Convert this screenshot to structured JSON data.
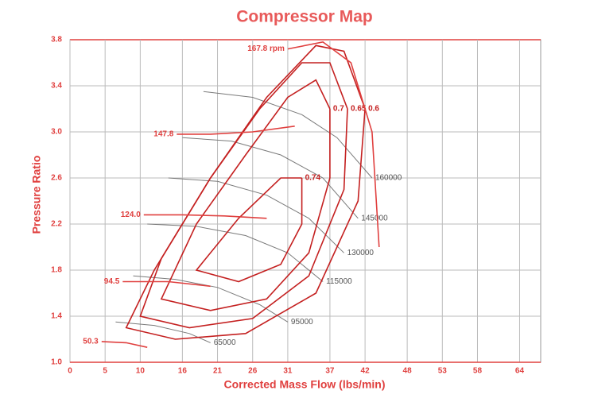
{
  "chart_data": {
    "type": "line",
    "title": "Compressor Map",
    "xlabel": "Corrected Mass Flow (lbs/min)",
    "ylabel": "Pressure Ratio",
    "xlim": [
      0,
      67
    ],
    "xticks": [
      0,
      5,
      10,
      16,
      21,
      26,
      31,
      37,
      42,
      48,
      53,
      58,
      64
    ],
    "ylim": [
      1.0,
      3.8
    ],
    "yticks": [
      {
        "value": 1.0,
        "label": "1.0"
      },
      1.4,
      1.8,
      2.2,
      2.6,
      {
        "value": 3.0,
        "label": "3.0"
      },
      3.4,
      3.8
    ],
    "grid": true,
    "series": [
      {
        "name": "65000",
        "color": "#7a7a7a",
        "x": [
          20,
          17,
          12,
          6.5
        ],
        "y": [
          1.17,
          1.25,
          1.32,
          1.35
        ]
      },
      {
        "name": "95000",
        "color": "#7a7a7a",
        "x": [
          31,
          27,
          21,
          15,
          9
        ],
        "y": [
          1.35,
          1.5,
          1.65,
          1.72,
          1.75
        ]
      },
      {
        "name": "115000",
        "color": "#7a7a7a",
        "x": [
          36,
          31,
          25,
          18,
          11
        ],
        "y": [
          1.7,
          1.95,
          2.1,
          2.18,
          2.2
        ]
      },
      {
        "name": "130000",
        "color": "#7a7a7a",
        "x": [
          39,
          34,
          28,
          21,
          14
        ],
        "y": [
          1.95,
          2.25,
          2.45,
          2.57,
          2.6
        ]
      },
      {
        "name": "145000",
        "color": "#7a7a7a",
        "x": [
          41,
          36,
          30,
          23,
          16
        ],
        "y": [
          2.25,
          2.6,
          2.8,
          2.92,
          2.95
        ]
      },
      {
        "name": "160000",
        "color": "#7a7a7a",
        "x": [
          43,
          38,
          33,
          26,
          19
        ],
        "y": [
          2.6,
          2.95,
          3.15,
          3.3,
          3.35
        ]
      },
      {
        "name": "0.6",
        "color": "#c42020",
        "x": [
          42,
          41,
          35,
          25,
          15,
          8,
          12,
          20,
          28,
          35,
          39,
          42
        ],
        "y": [
          3.2,
          2.4,
          1.6,
          1.25,
          1.2,
          1.3,
          1.8,
          2.6,
          3.3,
          3.75,
          3.7,
          3.2
        ]
      },
      {
        "name": "0.65",
        "color": "#c42020",
        "x": [
          39.5,
          39,
          34,
          26,
          17,
          10,
          13,
          20,
          27,
          33,
          37,
          39.5
        ],
        "y": [
          3.2,
          2.5,
          1.75,
          1.38,
          1.3,
          1.4,
          1.9,
          2.6,
          3.2,
          3.6,
          3.6,
          3.2
        ]
      },
      {
        "name": "0.7",
        "color": "#c42020",
        "x": [
          37,
          37,
          34,
          28,
          20,
          13,
          18,
          25,
          31,
          35,
          37
        ],
        "y": [
          3.2,
          2.6,
          1.95,
          1.55,
          1.45,
          1.55,
          2.2,
          2.8,
          3.3,
          3.45,
          3.2
        ]
      },
      {
        "name": "0.74",
        "color": "#c42020",
        "x": [
          33,
          33,
          30,
          24,
          18,
          24,
          30,
          33
        ],
        "y": [
          2.6,
          2.2,
          1.85,
          1.7,
          1.8,
          2.25,
          2.6,
          2.6
        ]
      },
      {
        "name": "147.8",
        "color": "#e0403f",
        "x": [
          15.2,
          20,
          26,
          32
        ],
        "y": [
          2.98,
          2.98,
          3.0,
          3.05
        ]
      },
      {
        "name": "124.0",
        "color": "#e0403f",
        "x": [
          10.5,
          16,
          22,
          28
        ],
        "y": [
          2.28,
          2.28,
          2.27,
          2.25
        ]
      },
      {
        "name": "94.5",
        "color": "#e0403f",
        "x": [
          7.5,
          14,
          20
        ],
        "y": [
          1.7,
          1.7,
          1.66
        ]
      },
      {
        "name": "50.3",
        "color": "#e0403f",
        "x": [
          4.5,
          8,
          11
        ],
        "y": [
          1.18,
          1.17,
          1.13
        ]
      },
      {
        "name": "167.8 rpm",
        "color": "#e0403f",
        "x": [
          31,
          36,
          40,
          43,
          44
        ],
        "y": [
          3.72,
          3.78,
          3.6,
          3.0,
          2.0
        ]
      }
    ]
  }
}
